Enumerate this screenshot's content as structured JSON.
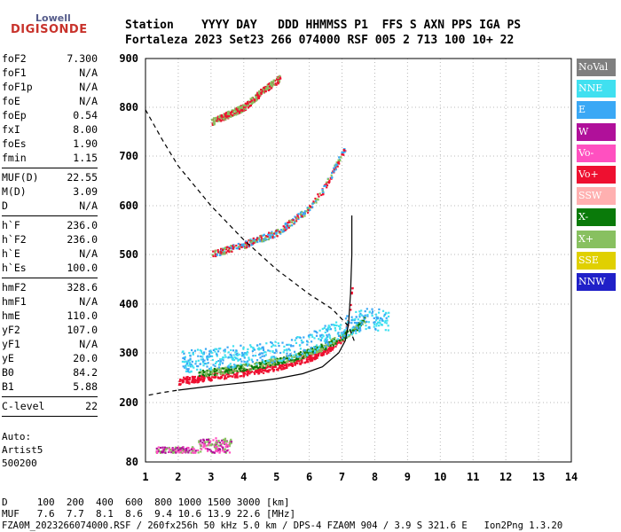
{
  "logo": {
    "brand": "Lowell",
    "product": "DIGISONDE"
  },
  "header": {
    "labels_line": "Station    YYYY DAY   DDD HHMMSS P1  FFS S AXN PPS IGA PS",
    "values_line": "Fortaleza 2023 Set23 266 074000 RSF 005 2 713 100 10+ 22"
  },
  "params": [
    {
      "name": "foF2",
      "value": "7.300"
    },
    {
      "name": "foF1",
      "value": "N/A"
    },
    {
      "name": "foF1p",
      "value": "N/A"
    },
    {
      "name": "foE",
      "value": "N/A"
    },
    {
      "name": "foEp",
      "value": "0.54"
    },
    {
      "name": "fxI",
      "value": "8.00"
    },
    {
      "name": "foEs",
      "value": "1.90"
    },
    {
      "name": "fmin",
      "value": "1.15"
    },
    {
      "sep": true
    },
    {
      "name": "MUF(D)",
      "value": "22.55"
    },
    {
      "name": "M(D)",
      "value": "3.09"
    },
    {
      "name": "D",
      "value": "N/A"
    },
    {
      "sep": true
    },
    {
      "name": "h`F",
      "value": "236.0"
    },
    {
      "name": "h`F2",
      "value": "236.0"
    },
    {
      "name": "h`E",
      "value": "N/A"
    },
    {
      "name": "h`Es",
      "value": "100.0"
    },
    {
      "sep": true
    },
    {
      "name": "hmF2",
      "value": "328.6"
    },
    {
      "name": "hmF1",
      "value": "N/A"
    },
    {
      "name": "hmE",
      "value": "110.0"
    },
    {
      "name": "yF2",
      "value": "107.0"
    },
    {
      "name": "yF1",
      "value": "N/A"
    },
    {
      "name": "yE",
      "value": "20.0"
    },
    {
      "name": "B0",
      "value": "84.2"
    },
    {
      "name": "B1",
      "value": "5.88"
    },
    {
      "sep": true
    },
    {
      "name": "C-level",
      "value": "22"
    },
    {
      "sep": true
    }
  ],
  "autoscaling": {
    "line1": "Auto:",
    "line2": "Artist5",
    "line3": "500200"
  },
  "legend": [
    {
      "label": "NoVal",
      "color": "#7f7f7f"
    },
    {
      "label": "NNE",
      "color": "#40e0f0"
    },
    {
      "label": "E",
      "color": "#3aa8f5"
    },
    {
      "label": "W",
      "color": "#b0109a"
    },
    {
      "label": "Vo-",
      "color": "#ff50c0"
    },
    {
      "label": "Vo+",
      "color": "#ee1030"
    },
    {
      "label": "SSW",
      "color": "#ffb0b0"
    },
    {
      "label": "X-",
      "color": "#0a7a0a"
    },
    {
      "label": "X+",
      "color": "#88c060"
    },
    {
      "label": "SSE",
      "color": "#e0d000"
    },
    {
      "label": "NNW",
      "color": "#2020c8"
    }
  ],
  "footer": {
    "line1": "D     100  200  400  600  800 1000 1500 3000 [km]",
    "line2": "MUF   7.6  7.7  8.1  8.6  9.4 10.6 13.9 22.6 [MHz]",
    "line3": "FZA0M_2023266074000.RSF / 260fx256h 50 kHz 5.0 km / DPS-4 FZA0M 904 / 3.9 S 321.6 E   Ion2Png 1.3.20"
  },
  "chart_data": {
    "type": "scatter",
    "title": "",
    "xlabel": "",
    "ylabel": "",
    "xlim": [
      1,
      14
    ],
    "ylim": [
      80,
      900
    ],
    "xticks": [
      1,
      2,
      3,
      4,
      5,
      6,
      7,
      8,
      9,
      10,
      11,
      12,
      13,
      14
    ],
    "yticks": [
      80,
      200,
      300,
      400,
      500,
      600,
      700,
      800,
      900
    ],
    "grid": true,
    "ionogram_traces": [
      {
        "name": "Es",
        "colors": [
          "#b0109a",
          "#ff50c0",
          "#88c060"
        ],
        "x_range": [
          1.3,
          3.6
        ],
        "h_range": [
          100,
          130
        ]
      },
      {
        "name": "F-trace O",
        "colors": [
          "#ee1030"
        ],
        "points": [
          [
            2,
            243
          ],
          [
            3,
            252
          ],
          [
            4,
            260
          ],
          [
            5,
            272
          ],
          [
            6,
            290
          ],
          [
            6.5,
            305
          ],
          [
            7.0,
            330
          ],
          [
            7.2,
            370
          ],
          [
            7.3,
            440
          ]
        ]
      },
      {
        "name": "F-trace X",
        "colors": [
          "#88c060",
          "#0a7a0a"
        ],
        "points": [
          [
            2.6,
            258
          ],
          [
            3.5,
            265
          ],
          [
            4.5,
            276
          ],
          [
            5.5,
            290
          ],
          [
            6.5,
            315
          ],
          [
            7.3,
            345
          ],
          [
            7.7,
            370
          ]
        ]
      },
      {
        "name": "F-trace oblique",
        "colors": [
          "#3aa8f5",
          "#40e0f0"
        ],
        "points": [
          [
            2.1,
            280
          ],
          [
            3,
            285
          ],
          [
            4,
            292
          ],
          [
            5,
            300
          ],
          [
            6,
            315
          ],
          [
            7,
            350
          ],
          [
            7.8,
            370
          ],
          [
            8.4,
            360
          ]
        ]
      },
      {
        "name": "2nd hop",
        "colors": [
          "#ee1030",
          "#88c060",
          "#3aa8f5"
        ],
        "points": [
          [
            3,
            500
          ],
          [
            4,
            520
          ],
          [
            5,
            545
          ],
          [
            5.9,
            590
          ],
          [
            6.4,
            630
          ],
          [
            7.1,
            720
          ]
        ]
      },
      {
        "name": "3rd hop",
        "colors": [
          "#ee1030",
          "#88c060"
        ],
        "points": [
          [
            3,
            770
          ],
          [
            3.5,
            785
          ],
          [
            4,
            800
          ],
          [
            4.5,
            830
          ],
          [
            5.1,
            860
          ]
        ]
      }
    ],
    "true_height_profile": [
      [
        2,
        225
      ],
      [
        3,
        233
      ],
      [
        4,
        240
      ],
      [
        5,
        248
      ],
      [
        5.8,
        258
      ],
      [
        6.4,
        272
      ],
      [
        6.9,
        300
      ],
      [
        7.1,
        325
      ],
      [
        7.2,
        360
      ],
      [
        7.26,
        420
      ],
      [
        7.3,
        500
      ],
      [
        7.3,
        580
      ]
    ],
    "model_profile_dashed": [
      [
        1,
        795
      ],
      [
        1.5,
        735
      ],
      [
        2,
        680
      ],
      [
        2.5,
        640
      ],
      [
        3,
        600
      ],
      [
        3.5,
        565
      ],
      [
        4,
        530
      ],
      [
        5,
        470
      ],
      [
        6,
        420
      ],
      [
        6.7,
        390
      ],
      [
        7.2,
        355
      ],
      [
        7.4,
        320
      ]
    ],
    "low_profile_dashed": [
      [
        1.1,
        215
      ],
      [
        1.5,
        220
      ],
      [
        2,
        225
      ]
    ]
  }
}
